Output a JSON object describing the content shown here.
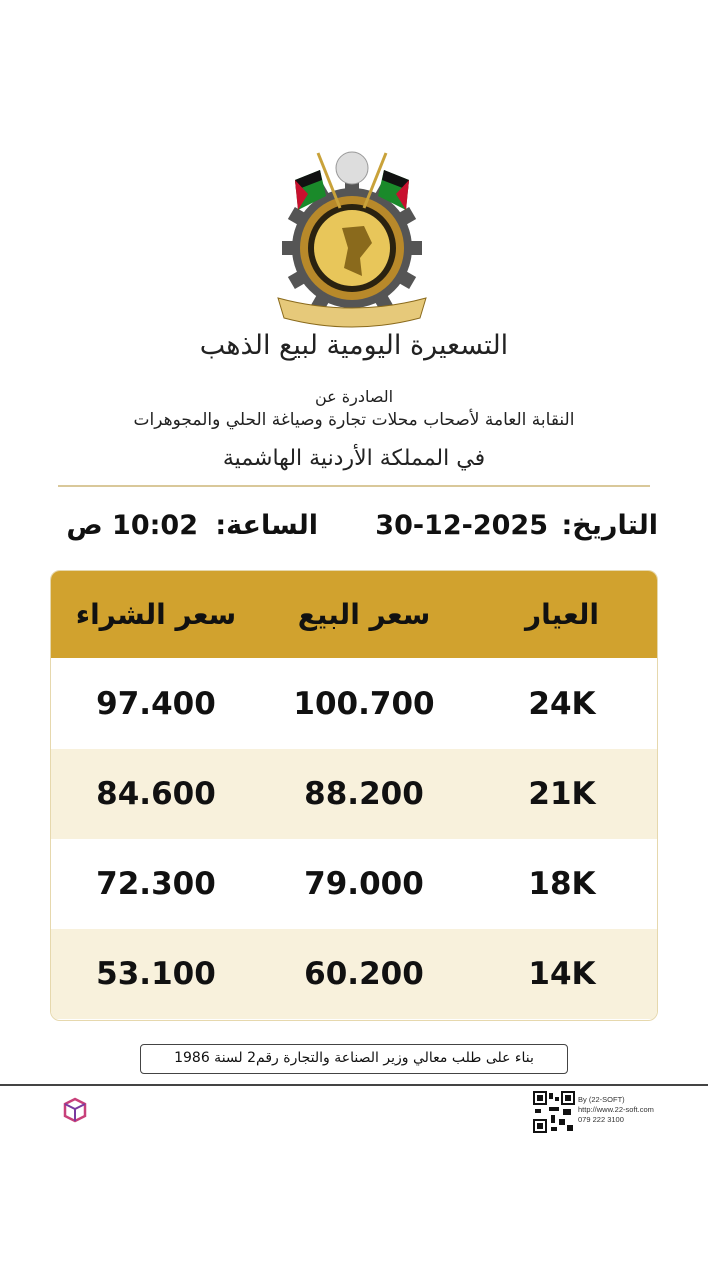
{
  "colors": {
    "header_gold": "#d1a22e",
    "stripe_cream": "#f8f1dc",
    "divider": "#d9c89a"
  },
  "header": {
    "logo_icon": "jewelers-union-emblem",
    "title": "التسعيرة اليومية لبيع الذهب",
    "issued_by": "الصادرة عن",
    "union": "النقابة العامة لأصحاب محلات تجارة وصياغة الحلي والمجوهرات",
    "kingdom": "في المملكة الأردنية الهاشمية"
  },
  "datetime": {
    "date_label": "التاريخ:",
    "date": "30-12-2025",
    "time_label": "الساعة:",
    "time": "10:02 ص"
  },
  "table": {
    "columns": [
      "العيار",
      "سعر البيع",
      "سعر الشراء"
    ],
    "rows": [
      {
        "karat": "24K",
        "sell": "100.700",
        "buy": "97.400"
      },
      {
        "karat": "21K",
        "sell": "88.200",
        "buy": "84.600"
      },
      {
        "karat": "18K",
        "sell": "79.000",
        "buy": "72.300"
      },
      {
        "karat": "14K",
        "sell": "60.200",
        "buy": "53.100"
      }
    ]
  },
  "footer": {
    "note": "بناء على طلب معالي وزير الصناعة والتجارة رقم2 لسنة 1986",
    "credit_by": "By (22-SOFT)",
    "credit_url": "http://www.22-soft.com",
    "credit_phone": "079 222 3100",
    "brand_icon": "22-soft-cube-logo",
    "qr_icon": "qr-code"
  }
}
